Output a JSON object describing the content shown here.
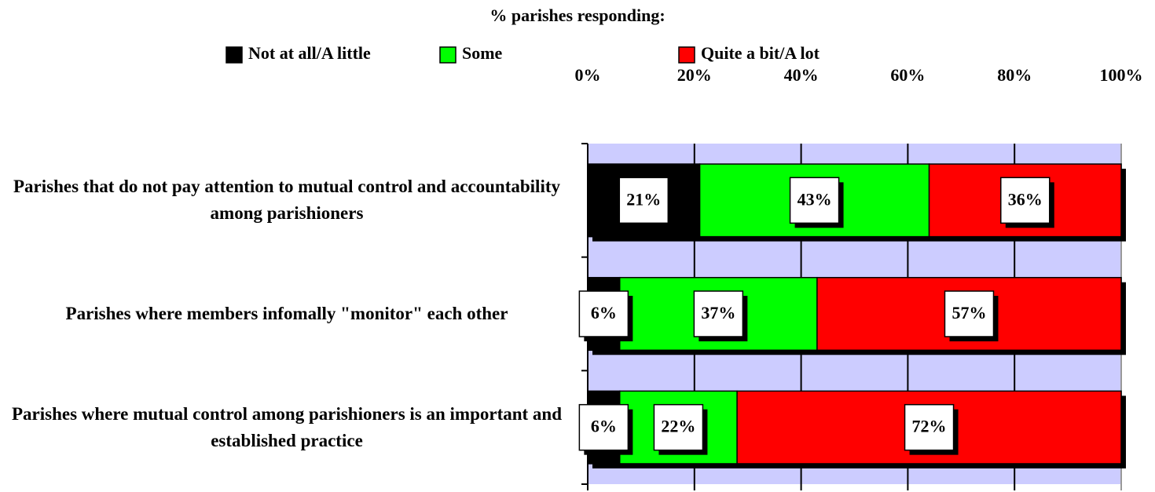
{
  "chart_data": {
    "type": "stacked_bar_horizontal",
    "title": "% parishes responding:",
    "categories": [
      "Parishes that do not pay attention to mutual control and accountability among parishioners",
      "Parishes where members infomally \"monitor\" each other",
      "Parishes where mutual control among parishioners is an important and established practice"
    ],
    "series": [
      {
        "name": "Not at all/A little",
        "color": "#000000",
        "values": [
          21,
          6,
          6
        ],
        "value_labels": [
          "21%",
          "6%",
          "6%"
        ]
      },
      {
        "name": "Some",
        "color": "#00ff00",
        "values": [
          43,
          37,
          22
        ],
        "value_labels": [
          "43%",
          "37%",
          "22%"
        ]
      },
      {
        "name": "Quite a bit/A lot",
        "color": "#ff0000",
        "values": [
          36,
          57,
          72
        ],
        "value_labels": [
          "36%",
          "57%",
          "72%"
        ]
      }
    ],
    "xlim": [
      0,
      100
    ],
    "xticks": [
      {
        "value": 0,
        "label": "0%"
      },
      {
        "value": 20,
        "label": "20%"
      },
      {
        "value": 40,
        "label": "40%"
      },
      {
        "value": 60,
        "label": "60%"
      },
      {
        "value": 80,
        "label": "80%"
      },
      {
        "value": 100,
        "label": "100%"
      }
    ],
    "grid": true,
    "legend": "top"
  }
}
